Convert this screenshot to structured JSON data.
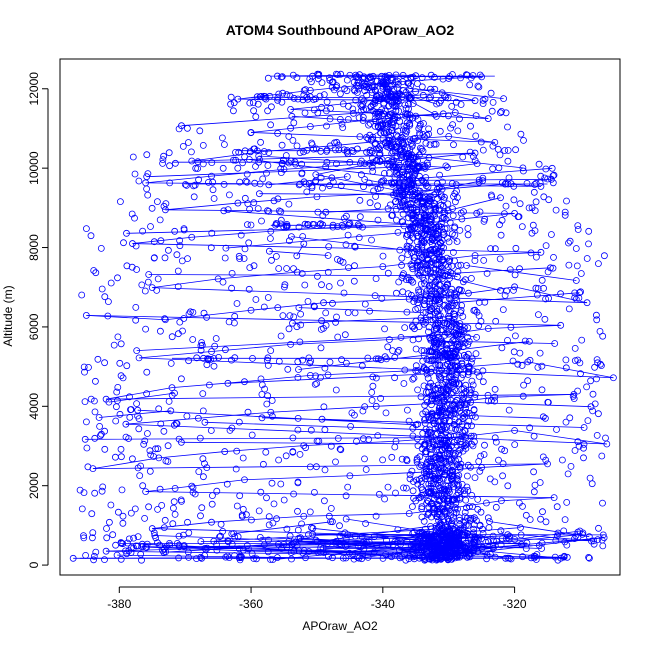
{
  "chart_data": {
    "type": "scatter",
    "title": "ATOM4 Southbound APOraw_AO2",
    "xlabel": "APOraw_AO2",
    "ylabel": "Altitude (m)",
    "xlim": [
      -389,
      -304
    ],
    "ylim": [
      -250,
      12750
    ],
    "x_ticks": [
      -380,
      -360,
      -340,
      -320
    ],
    "y_ticks": [
      0,
      2000,
      4000,
      6000,
      8000,
      10000,
      12000
    ],
    "grid": false,
    "legend": "none",
    "marker": "open-circle",
    "connected": true,
    "color": "#0000ff",
    "series": [
      {
        "points": [
          [
            -387,
            170
          ],
          [
            -371,
            180
          ],
          [
            -356,
            190
          ],
          [
            -346,
            175
          ],
          [
            -334,
            185
          ],
          [
            -321,
            175
          ],
          [
            -312,
            195
          ],
          [
            -382,
            350
          ],
          [
            -367,
            420
          ],
          [
            -358,
            510
          ],
          [
            -343,
            560
          ],
          [
            -331,
            620
          ],
          [
            -326,
            700
          ],
          [
            -319,
            760
          ],
          [
            -308,
            610
          ],
          [
            -375,
            920
          ],
          [
            -366,
            1080
          ],
          [
            -352,
            1230
          ],
          [
            -336,
            1300
          ],
          [
            -329,
            1450
          ],
          [
            -322,
            1620
          ],
          [
            -314,
            1700
          ],
          [
            -376,
            1850
          ],
          [
            -369,
            1990
          ],
          [
            -361,
            2150
          ],
          [
            -345,
            2250
          ],
          [
            -333,
            2350
          ],
          [
            -325,
            2460
          ],
          [
            -315,
            2550
          ],
          [
            -384,
            2430
          ],
          [
            -374,
            2700
          ],
          [
            -364,
            2860
          ],
          [
            -352,
            3010
          ],
          [
            -338,
            3120
          ],
          [
            -328,
            3240
          ],
          [
            -320,
            3390
          ],
          [
            -306,
            3050
          ],
          [
            -379,
            3550
          ],
          [
            -368,
            3700
          ],
          [
            -357,
            3850
          ],
          [
            -341,
            4000
          ],
          [
            -329,
            4100
          ],
          [
            -323,
            4230
          ],
          [
            -311,
            4300
          ],
          [
            -382,
            4180
          ],
          [
            -372,
            4470
          ],
          [
            -361,
            4620
          ],
          [
            -351,
            4780
          ],
          [
            -335,
            4900
          ],
          [
            -327,
            5000
          ],
          [
            -318,
            5120
          ],
          [
            -305,
            4720
          ],
          [
            -377,
            5220
          ],
          [
            -366,
            5380
          ],
          [
            -354,
            5560
          ],
          [
            -339,
            5680
          ],
          [
            -330,
            5820
          ],
          [
            -324,
            5960
          ],
          [
            -313,
            6040
          ],
          [
            -385,
            6290
          ],
          [
            -373,
            6180
          ],
          [
            -360,
            6420
          ],
          [
            -349,
            6610
          ],
          [
            -336,
            6700
          ],
          [
            -327,
            6850
          ],
          [
            -320,
            7010
          ],
          [
            -309,
            6610
          ],
          [
            -375,
            6990
          ],
          [
            -365,
            7210
          ],
          [
            -353,
            7380
          ],
          [
            -340,
            7520
          ],
          [
            -332,
            7680
          ],
          [
            -326,
            7800
          ],
          [
            -316,
            7880
          ],
          [
            -378,
            8100
          ],
          [
            -369,
            8260
          ],
          [
            -357,
            8410
          ],
          [
            -346,
            8520
          ],
          [
            -334,
            8600
          ],
          [
            -328,
            8720
          ],
          [
            -320,
            8860
          ],
          [
            -373,
            8950
          ],
          [
            -362,
            9120
          ],
          [
            -350,
            9280
          ],
          [
            -338,
            9380
          ],
          [
            -331,
            9470
          ],
          [
            -321,
            9600
          ],
          [
            -316,
            9540
          ],
          [
            -376,
            9630
          ],
          [
            -366,
            9800
          ],
          [
            -355,
            9970
          ],
          [
            -342,
            10120
          ],
          [
            -333,
            10260
          ],
          [
            -326,
            10380
          ],
          [
            -369,
            10180
          ],
          [
            -358,
            10420
          ],
          [
            -348,
            10560
          ],
          [
            -339,
            10700
          ],
          [
            -330,
            10800
          ],
          [
            -323,
            10650
          ],
          [
            -360,
            10900
          ],
          [
            -351,
            11050
          ],
          [
            -343,
            11200
          ],
          [
            -335,
            11310
          ],
          [
            -329,
            11400
          ],
          [
            -324,
            11250
          ],
          [
            -354,
            11480
          ],
          [
            -346,
            11620
          ],
          [
            -338,
            11780
          ],
          [
            -331,
            11900
          ],
          [
            -326,
            11700
          ],
          [
            -362,
            11740
          ],
          [
            -351,
            11960
          ],
          [
            -344,
            12080
          ],
          [
            -337,
            12180
          ],
          [
            -330,
            12260
          ],
          [
            -325,
            12300
          ],
          [
            -356,
            12320
          ],
          [
            -345,
            12340
          ],
          [
            -338,
            12350
          ],
          [
            -335,
            12330
          ]
        ]
      }
    ]
  }
}
